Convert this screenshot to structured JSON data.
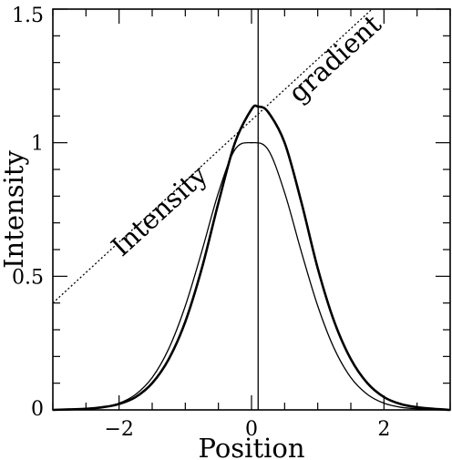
{
  "chart_data": {
    "type": "line",
    "title": "",
    "xlabel": "Position",
    "ylabel": "Intensity",
    "xlim": [
      -3,
      3
    ],
    "ylim": [
      0,
      1.5
    ],
    "x_ticks": [
      {
        "value": -2,
        "label": "−2"
      },
      {
        "value": 0,
        "label": "0"
      },
      {
        "value": 2,
        "label": "2"
      }
    ],
    "y_ticks": [
      {
        "value": 0,
        "label": "0"
      },
      {
        "value": 0.5,
        "label": "0.5"
      },
      {
        "value": 1,
        "label": "1"
      },
      {
        "value": 1.5,
        "label": "1.5"
      }
    ],
    "minor_x_step": 0.5,
    "minor_y_step": 0.1,
    "grid": false,
    "series": [
      {
        "style": "thin",
        "x": [
          -3.0,
          -2.75,
          -2.5,
          -2.25,
          -2.0,
          -1.75,
          -1.5,
          -1.25,
          -1.0,
          -0.75,
          -0.5,
          -0.25,
          0.0,
          0.25,
          0.5,
          0.75,
          1.0,
          1.25,
          1.5,
          1.75,
          2.0,
          2.25,
          2.5,
          2.75,
          3.0
        ],
        "y": [
          0.0,
          0.002,
          0.004,
          0.01,
          0.025,
          0.058,
          0.121,
          0.229,
          0.389,
          0.594,
          0.813,
          0.974,
          1.0,
          0.974,
          0.813,
          0.594,
          0.389,
          0.229,
          0.121,
          0.058,
          0.025,
          0.01,
          0.004,
          0.002,
          0.0
        ]
      },
      {
        "style": "thick",
        "x": [
          -3.0,
          -2.75,
          -2.5,
          -2.25,
          -2.0,
          -1.75,
          -1.5,
          -1.25,
          -1.0,
          -0.75,
          -0.5,
          -0.25,
          0.0,
          0.1,
          0.25,
          0.5,
          0.75,
          1.0,
          1.25,
          1.5,
          1.75,
          2.0,
          2.25,
          2.5,
          2.75,
          3.0
        ],
        "y": [
          0.0,
          0.002,
          0.004,
          0.01,
          0.022,
          0.048,
          0.1,
          0.19,
          0.33,
          0.53,
          0.775,
          1.0,
          1.125,
          1.135,
          1.115,
          1.0,
          0.78,
          0.53,
          0.33,
          0.19,
          0.1,
          0.048,
          0.022,
          0.01,
          0.004,
          0.0
        ]
      },
      {
        "style": "dotted",
        "x": [
          -3.0,
          1.82
        ],
        "y": [
          0.4,
          1.5
        ]
      }
    ],
    "vertical_line_x": 0.1,
    "annotations": [
      {
        "text": "Intensity",
        "x": -1.3,
        "y": 0.72
      },
      {
        "text": "gradient",
        "x": 1.35,
        "y": 1.29
      }
    ]
  }
}
